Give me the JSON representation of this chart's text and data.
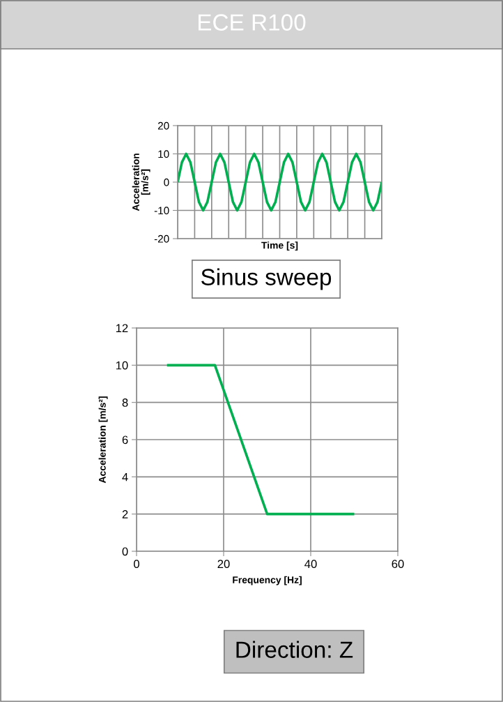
{
  "chart_data": [
    {
      "type": "line",
      "title": "ECE R100",
      "xlabel": "Time [s]",
      "ylabel": "Acceleration\n[m/s²]",
      "categories": [
        null,
        null,
        null,
        null,
        null,
        null,
        null,
        null,
        null,
        null,
        null,
        null,
        null,
        null,
        null,
        null,
        null,
        null,
        null,
        null,
        null,
        null,
        null,
        null,
        null,
        null,
        null,
        null,
        null,
        null,
        null,
        null,
        null,
        null,
        null,
        null,
        null,
        null,
        null,
        null,
        null,
        null,
        null,
        null,
        null,
        null,
        null,
        null,
        null
      ],
      "series": [
        {
          "color": "#00b050",
          "values": [
            0,
            7,
            10,
            7,
            0,
            -7,
            -10,
            -7,
            0,
            7,
            10,
            7,
            0,
            -7,
            -10,
            -7,
            0,
            7,
            10,
            7,
            0,
            -7,
            -10,
            -7,
            0,
            7,
            10,
            7,
            0,
            -7,
            -10,
            -7,
            0,
            7,
            10,
            7,
            0,
            -7,
            -10,
            -7,
            0,
            7,
            10,
            7,
            0,
            -7,
            -10,
            -7,
            0
          ]
        }
      ],
      "ylim": [
        -20,
        20
      ],
      "yticks": [
        -20,
        -10,
        0,
        10,
        20
      ],
      "grid": true,
      "tick_labels": "y"
    },
    {
      "type": "line",
      "title": "Sinus sweep",
      "xlabel": "Frequency [Hz]",
      "ylabel": "Acceleration [m/s²]",
      "annotations": [
        "Direction: Z"
      ],
      "series": [
        {
          "color": "#00b050",
          "x": [
            7,
            18,
            30,
            50
          ],
          "values": [
            10,
            10,
            2,
            2
          ]
        }
      ],
      "xlim": [
        0,
        60
      ],
      "xticks": [
        0,
        20,
        40,
        60
      ],
      "ylim": [
        0,
        12
      ],
      "yticks": [
        0,
        2,
        4,
        6,
        8,
        10,
        12
      ],
      "grid": true
    }
  ]
}
